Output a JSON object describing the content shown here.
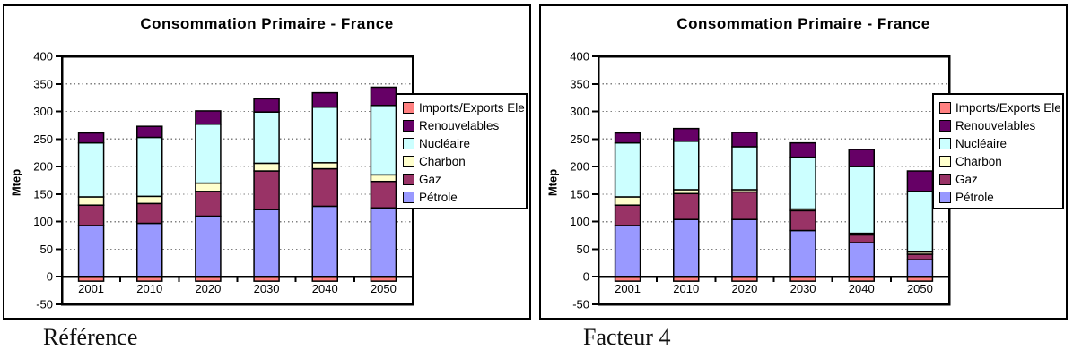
{
  "chart_data": [
    {
      "type": "bar",
      "stacked": true,
      "title": "Consommation Primaire - France",
      "caption": "Référence",
      "ylabel": "Mtep",
      "ylim": [
        -50,
        400
      ],
      "ytick_step": 50,
      "grid": "dotted-horizontal",
      "legend_position": "right-overlapping-plot",
      "categories": [
        "2001",
        "2010",
        "2020",
        "2030",
        "2040",
        "2050"
      ],
      "series": [
        {
          "name": "Pétrole",
          "color": "#9999FF",
          "values": [
            93,
            97,
            110,
            122,
            128,
            125
          ]
        },
        {
          "name": "Gaz",
          "color": "#993366",
          "values": [
            37,
            36,
            45,
            70,
            68,
            48
          ]
        },
        {
          "name": "Charbon",
          "color": "#FFFFCC",
          "values": [
            15,
            13,
            15,
            14,
            11,
            12
          ]
        },
        {
          "name": "Nucléaire",
          "color": "#CCFFFF",
          "values": [
            98,
            107,
            107,
            93,
            101,
            126
          ]
        },
        {
          "name": "Renouvelables",
          "color": "#660066",
          "values": [
            18,
            20,
            24,
            24,
            26,
            33
          ]
        },
        {
          "name": "Imports/Exports Ele",
          "color": "#FF8080",
          "values": [
            -8,
            -8,
            -8,
            -8,
            -8,
            -8
          ]
        }
      ],
      "legend_order_top_to_bottom": [
        "Imports/Exports Ele",
        "Renouvelables",
        "Nucléaire",
        "Charbon",
        "Gaz",
        "Pétrole"
      ]
    },
    {
      "type": "bar",
      "stacked": true,
      "title": "Consommation Primaire - France",
      "caption": "Facteur 4",
      "ylabel": "Mtep",
      "ylim": [
        -50,
        400
      ],
      "ytick_step": 50,
      "grid": "dotted-horizontal",
      "legend_position": "right-overlapping-plot",
      "categories": [
        "2001",
        "2010",
        "2020",
        "2030",
        "2040",
        "2050"
      ],
      "series": [
        {
          "name": "Pétrole",
          "color": "#9999FF",
          "values": [
            93,
            104,
            104,
            84,
            62,
            31
          ]
        },
        {
          "name": "Gaz",
          "color": "#993366",
          "values": [
            37,
            47,
            50,
            36,
            14,
            10
          ]
        },
        {
          "name": "Charbon",
          "color": "#FFFFCC",
          "values": [
            15,
            7,
            4,
            3,
            3,
            4
          ]
        },
        {
          "name": "Nucléaire",
          "color": "#CCFFFF",
          "values": [
            98,
            88,
            78,
            94,
            121,
            110
          ]
        },
        {
          "name": "Renouvelables",
          "color": "#660066",
          "values": [
            18,
            23,
            26,
            26,
            31,
            37
          ]
        },
        {
          "name": "Imports/Exports Ele",
          "color": "#FF8080",
          "values": [
            -8,
            -8,
            -8,
            -8,
            -8,
            -8
          ]
        }
      ],
      "legend_order_top_to_bottom": [
        "Imports/Exports Ele",
        "Renouvelables",
        "Nucléaire",
        "Charbon",
        "Gaz",
        "Pétrole"
      ]
    }
  ]
}
